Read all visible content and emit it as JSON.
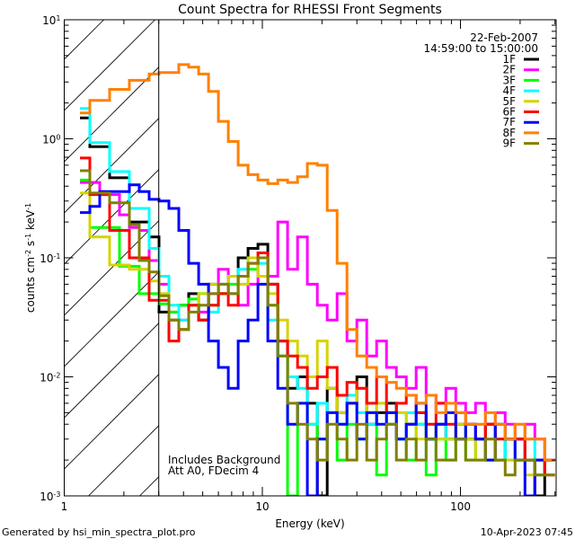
{
  "chart_data": {
    "type": "line",
    "title": "Count Spectra for RHESSI Front Segments",
    "xlabel": "Energy (keV)",
    "ylabel": "counts cm^-2 s^-1 keV^-1",
    "xscale": "log",
    "yscale": "log",
    "xlim": [
      1,
      304
    ],
    "ylim": [
      0.001,
      10
    ],
    "x_ticks": [
      {
        "value": 1,
        "label": "1"
      },
      {
        "value": 10,
        "label": "10"
      },
      {
        "value": 100,
        "label": "100"
      }
    ],
    "y_ticks": [
      {
        "value": 0.001,
        "label": "10^-3"
      },
      {
        "value": 0.01,
        "label": "10^-2"
      },
      {
        "value": 0.1,
        "label": "10^-1"
      },
      {
        "value": 1,
        "label": "10^0"
      },
      {
        "value": 10,
        "label": "10^1"
      }
    ],
    "shaded_region_keV": [
      1,
      3
    ],
    "legend_position": "top-right",
    "legend_header": [
      "22-Feb-2007",
      "14:59:00 to 15:00:00"
    ],
    "annotations": [
      "Includes Background",
      "Att A0, FDecim 4"
    ],
    "energy_edges_keV": [
      1.2,
      1.346,
      1.51,
      1.694,
      1.9,
      2.132,
      2.392,
      2.683,
      3.01,
      3.377,
      3.788,
      4.249,
      4.767,
      5.348,
      5.999,
      6.73,
      7.55,
      8.469,
      9.501,
      10.66,
      11.96,
      13.41,
      15.05,
      16.88,
      18.94,
      21.24,
      23.83,
      26.73,
      29.99,
      33.64,
      37.74,
      42.34,
      47.5,
      53.28,
      59.78,
      67.06,
      75.22,
      84.39,
      94.67,
      106.2,
      119.1,
      133.6,
      149.9,
      168.2,
      188.7,
      211.6,
      237.4,
      266.3,
      300
    ],
    "series": [
      {
        "name": "1F",
        "color": "#000000",
        "values": [
          1.5,
          0.86,
          0.86,
          0.47,
          0.47,
          0.2,
          0.2,
          0.15,
          0.035,
          0.03,
          0.04,
          0.05,
          0.03,
          0.06,
          0.05,
          0.07,
          0.1,
          0.12,
          0.13,
          0.06,
          0.02,
          0.008,
          0.01,
          0.006,
          0.001,
          0.008,
          0.005,
          0.006,
          0.01,
          0.004,
          0.005,
          0.006,
          0.003,
          0.004,
          0.005,
          0.003,
          0.004,
          0.003,
          0.004,
          0.003,
          0.003,
          0.004,
          0.002,
          0.003,
          0.003,
          0.002,
          0.001,
          0.002
        ]
      },
      {
        "name": "2F",
        "color": "#ff00ff",
        "values": [
          0.43,
          0.43,
          0.34,
          0.34,
          0.23,
          0.18,
          0.17,
          0.095,
          0.06,
          0.035,
          0.03,
          0.04,
          0.035,
          0.05,
          0.08,
          0.05,
          0.04,
          0.06,
          0.1,
          0.07,
          0.2,
          0.08,
          0.15,
          0.06,
          0.04,
          0.03,
          0.05,
          0.02,
          0.03,
          0.015,
          0.02,
          0.012,
          0.01,
          0.008,
          0.012,
          0.007,
          0.006,
          0.008,
          0.006,
          0.005,
          0.006,
          0.004,
          0.005,
          0.004,
          0.003,
          0.004,
          0.003,
          0.002
        ]
      },
      {
        "name": "3F",
        "color": "#00ff00",
        "values": [
          0.45,
          0.18,
          0.18,
          0.18,
          0.085,
          0.085,
          0.05,
          0.05,
          0.041,
          0.035,
          0.04,
          0.045,
          0.05,
          0.04,
          0.05,
          0.06,
          0.07,
          0.08,
          0.1,
          0.04,
          0.015,
          0.001,
          0.006,
          0.004,
          0.003,
          0.005,
          0.002,
          0.004,
          0.003,
          0.005,
          0.0015,
          0.004,
          0.003,
          0.002,
          0.004,
          0.0015,
          0.003,
          0.002,
          0.003,
          0.002,
          0.003,
          0.002,
          0.002,
          0.003,
          0.002,
          0.002,
          0.0015,
          0.002
        ]
      },
      {
        "name": "4F",
        "color": "#00ffff",
        "values": [
          1.8,
          0.93,
          0.93,
          0.53,
          0.53,
          0.26,
          0.26,
          0.12,
          0.07,
          0.04,
          0.03,
          0.04,
          0.05,
          0.035,
          0.06,
          0.05,
          0.08,
          0.1,
          0.09,
          0.03,
          0.015,
          0.01,
          0.008,
          0.004,
          0.006,
          0.005,
          0.004,
          0.007,
          0.005,
          0.004,
          0.006,
          0.004,
          0.003,
          0.005,
          0.004,
          0.003,
          0.004,
          0.003,
          0.003,
          0.004,
          0.003,
          0.002,
          0.003,
          0.002,
          0.002,
          0.003,
          0.002,
          0.002
        ]
      },
      {
        "name": "5F",
        "color": "#d4d400",
        "values": [
          0.35,
          0.15,
          0.15,
          0.087,
          0.087,
          0.08,
          0.08,
          0.064,
          0.05,
          0.03,
          0.025,
          0.04,
          0.05,
          0.06,
          0.05,
          0.07,
          0.06,
          0.1,
          0.07,
          0.05,
          0.03,
          0.02,
          0.015,
          0.01,
          0.02,
          0.008,
          0.005,
          0.006,
          0.008,
          0.005,
          0.006,
          0.004,
          0.005,
          0.004,
          0.003,
          0.004,
          0.003,
          0.003,
          0.004,
          0.003,
          0.002,
          0.003,
          0.002,
          0.002,
          0.002,
          0.0015,
          0.002,
          0.002
        ]
      },
      {
        "name": "6F",
        "color": "#ff0000",
        "values": [
          0.69,
          0.34,
          0.34,
          0.17,
          0.17,
          0.1,
          0.1,
          0.044,
          0.044,
          0.02,
          0.025,
          0.04,
          0.03,
          0.04,
          0.05,
          0.04,
          0.07,
          0.09,
          0.11,
          0.06,
          0.02,
          0.015,
          0.012,
          0.008,
          0.01,
          0.012,
          0.007,
          0.009,
          0.008,
          0.006,
          0.01,
          0.005,
          0.006,
          0.007,
          0.005,
          0.004,
          0.006,
          0.004,
          0.005,
          0.004,
          0.003,
          0.004,
          0.003,
          0.003,
          0.003,
          0.002,
          0.002,
          0.0015
        ]
      },
      {
        "name": "7F",
        "color": "#0000ff",
        "values": [
          0.24,
          0.27,
          0.36,
          0.36,
          0.36,
          0.41,
          0.36,
          0.31,
          0.3,
          0.26,
          0.17,
          0.09,
          0.06,
          0.02,
          0.012,
          0.008,
          0.02,
          0.03,
          0.06,
          0.02,
          0.008,
          0.004,
          0.006,
          0.001,
          0.003,
          0.005,
          0.004,
          0.006,
          0.003,
          0.005,
          0.004,
          0.005,
          0.003,
          0.004,
          0.006,
          0.003,
          0.004,
          0.005,
          0.003,
          0.004,
          0.003,
          0.002,
          0.004,
          0.003,
          0.002,
          0.001,
          0.002,
          0.002
        ]
      },
      {
        "name": "8F",
        "color": "#ff8000",
        "values": [
          1.65,
          2.1,
          2.1,
          2.6,
          2.6,
          3.1,
          3.1,
          3.5,
          3.6,
          3.6,
          4.2,
          4.0,
          3.5,
          2.5,
          1.4,
          0.95,
          0.6,
          0.5,
          0.45,
          0.42,
          0.45,
          0.43,
          0.48,
          0.62,
          0.6,
          0.25,
          0.09,
          0.025,
          0.015,
          0.012,
          0.01,
          0.009,
          0.008,
          0.007,
          0.006,
          0.007,
          0.005,
          0.006,
          0.005,
          0.004,
          0.004,
          0.005,
          0.004,
          0.003,
          0.004,
          0.003,
          0.003,
          0.002
        ]
      },
      {
        "name": "9F",
        "color": "#808000",
        "values": [
          0.54,
          0.35,
          0.35,
          0.29,
          0.29,
          0.19,
          0.095,
          0.076,
          0.048,
          0.03,
          0.025,
          0.035,
          0.04,
          0.05,
          0.06,
          0.05,
          0.07,
          0.09,
          0.1,
          0.04,
          0.015,
          0.006,
          0.004,
          0.003,
          0.002,
          0.004,
          0.003,
          0.002,
          0.004,
          0.002,
          0.003,
          0.004,
          0.002,
          0.003,
          0.002,
          0.003,
          0.002,
          0.002,
          0.003,
          0.002,
          0.002,
          0.003,
          0.002,
          0.0015,
          0.002,
          0.002,
          0.0015,
          0.0015
        ]
      }
    ]
  },
  "footer": {
    "generated_by": "Generated by hsi_min_spectra_plot.pro",
    "timestamp": "10-Apr-2023 07:45"
  }
}
